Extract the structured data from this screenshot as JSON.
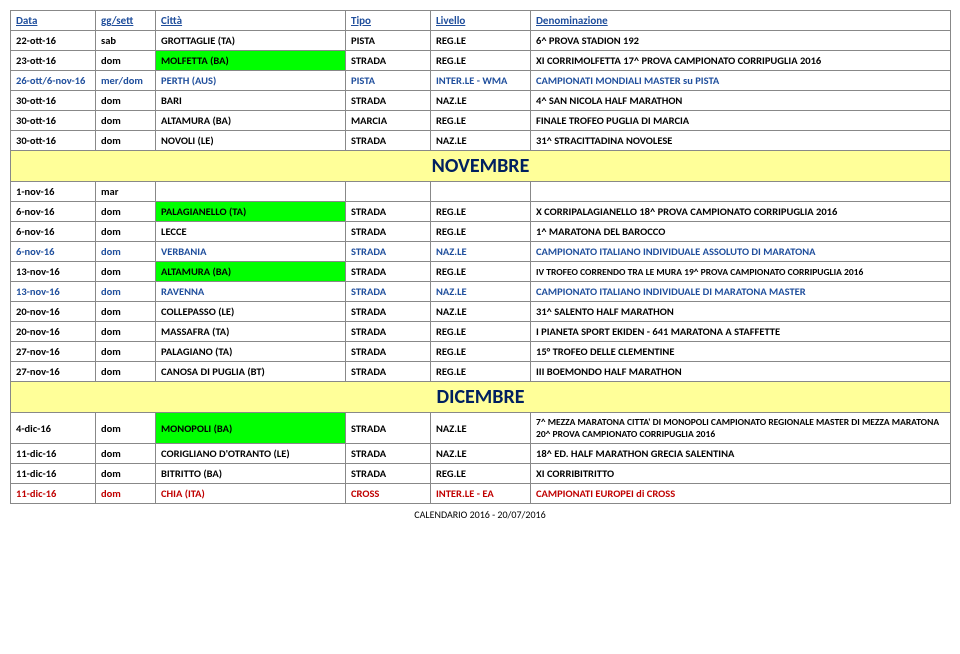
{
  "headers": {
    "data": "Data",
    "gg": "gg/sett",
    "citta": "Città",
    "tipo": "Tipo",
    "livello": "Livello",
    "denom": "Denominazione"
  },
  "rows": {
    "r0": {
      "data": "22-ott-16",
      "gg": "sab",
      "citta": "GROTTAGLIE (TA)",
      "tipo": "PISTA",
      "livello": "REG.LE",
      "denom": "6^ PROVA STADION 192"
    },
    "r1": {
      "data": "23-ott-16",
      "gg": "dom",
      "citta": "MOLFETTA (BA)",
      "tipo": "STRADA",
      "livello": "REG.LE",
      "denom": "XI CORRIMOLFETTA 17^ PROVA CAMPIONATO CORRIPUGLIA 2016"
    },
    "r2": {
      "data": "26-ott/6-nov-16",
      "gg": "mer/dom",
      "citta": "PERTH (AUS)",
      "tipo": "PISTA",
      "livello": "INTER.LE - WMA",
      "denom": "CAMPIONATI MONDIALI MASTER su PISTA"
    },
    "r3": {
      "data": "30-ott-16",
      "gg": "dom",
      "citta": "BARI",
      "tipo": "STRADA",
      "livello": "NAZ.LE",
      "denom": "4^ SAN NICOLA HALF MARATHON"
    },
    "r4": {
      "data": "30-ott-16",
      "gg": "dom",
      "citta": "ALTAMURA (BA)",
      "tipo": "MARCIA",
      "livello": "REG.LE",
      "denom": "FINALE TROFEO PUGLIA DI MARCIA"
    },
    "r5": {
      "data": "30-ott-16",
      "gg": "dom",
      "citta": "NOVOLI (LE)",
      "tipo": "STRADA",
      "livello": "NAZ.LE",
      "denom": "31^ STRACITTADINA NOVOLESE"
    },
    "month1": "NOVEMBRE",
    "r6": {
      "data": "1-nov-16",
      "gg": "mar",
      "citta": "",
      "tipo": "",
      "livello": "",
      "denom": ""
    },
    "r7": {
      "data": "6-nov-16",
      "gg": "dom",
      "citta": "PALAGIANELLO (TA)",
      "tipo": "STRADA",
      "livello": "REG.LE",
      "denom": "X CORRIPALAGIANELLO 18^ PROVA CAMPIONATO CORRIPUGLIA 2016"
    },
    "r8": {
      "data": "6-nov-16",
      "gg": "dom",
      "citta": "LECCE",
      "tipo": "STRADA",
      "livello": "REG.LE",
      "denom": "1^ MARATONA DEL BAROCCO"
    },
    "r9": {
      "data": "6-nov-16",
      "gg": "dom",
      "citta": "VERBANIA",
      "tipo": "STRADA",
      "livello": "NAZ.LE",
      "denom": "CAMPIONATO ITALIANO INDIVIDUALE ASSOLUTO DI MARATONA"
    },
    "r10": {
      "data": "13-nov-16",
      "gg": "dom",
      "citta": "ALTAMURA (BA)",
      "tipo": "STRADA",
      "livello": "REG.LE",
      "denom": "IV TROFEO CORRENDO TRA LE MURA 19^ PROVA CAMPIONATO CORRIPUGLIA 2016"
    },
    "r11": {
      "data": "13-nov-16",
      "gg": "dom",
      "citta": "RAVENNA",
      "tipo": "STRADA",
      "livello": "NAZ.LE",
      "denom": "CAMPIONATO ITALIANO INDIVIDUALE  DI MARATONA MASTER"
    },
    "r12": {
      "data": "20-nov-16",
      "gg": "dom",
      "citta": "COLLEPASSO (LE)",
      "tipo": "STRADA",
      "livello": "NAZ.LE",
      "denom": "31^ SALENTO HALF MARATHON"
    },
    "r13": {
      "data": "20-nov-16",
      "gg": "dom",
      "citta": "MASSAFRA (TA)",
      "tipo": "STRADA",
      "livello": "REG.LE",
      "denom": "I PIANETA SPORT EKIDEN - 641 MARATONA A STAFFETTE"
    },
    "r14": {
      "data": "27-nov-16",
      "gg": "dom",
      "citta": "PALAGIANO (TA)",
      "tipo": "STRADA",
      "livello": "REG.LE",
      "denom": "15° TROFEO DELLE CLEMENTINE"
    },
    "r15": {
      "data": "27-nov-16",
      "gg": "dom",
      "citta": "CANOSA DI PUGLIA (BT)",
      "tipo": "STRADA",
      "livello": "REG.LE",
      "denom": "III BOEMONDO HALF MARATHON"
    },
    "month2": "DICEMBRE",
    "r16": {
      "data": "4-dic-16",
      "gg": "dom",
      "citta": "MONOPOLI (BA)",
      "tipo": "STRADA",
      "livello": "NAZ.LE",
      "denom": "7^ MEZZA MARATONA CITTA' DI MONOPOLI CAMPIONATO REGIONALE MASTER DI MEZZA MARATONA 20^ PROVA CAMPIONATO CORRIPUGLIA 2016"
    },
    "r17": {
      "data": "11-dic-16",
      "gg": "dom",
      "citta": "CORIGLIANO D'OTRANTO (LE)",
      "tipo": "STRADA",
      "livello": "NAZ.LE",
      "denom": "18^ ED. HALF MARATHON GRECIA SALENTINA"
    },
    "r18": {
      "data": "11-dic-16",
      "gg": "dom",
      "citta": "BITRITTO (BA)",
      "tipo": "STRADA",
      "livello": "REG.LE",
      "denom": "XI CORRIBITRITTO"
    },
    "r19": {
      "data": "11-dic-16",
      "gg": "dom",
      "citta": "CHIA (ITA)",
      "tipo": "CROSS",
      "livello": "INTER.LE - EA",
      "denom": "CAMPIONATI EUROPEI di CROSS"
    }
  },
  "footer": "CALENDARIO 2016 - 20/07/2016"
}
